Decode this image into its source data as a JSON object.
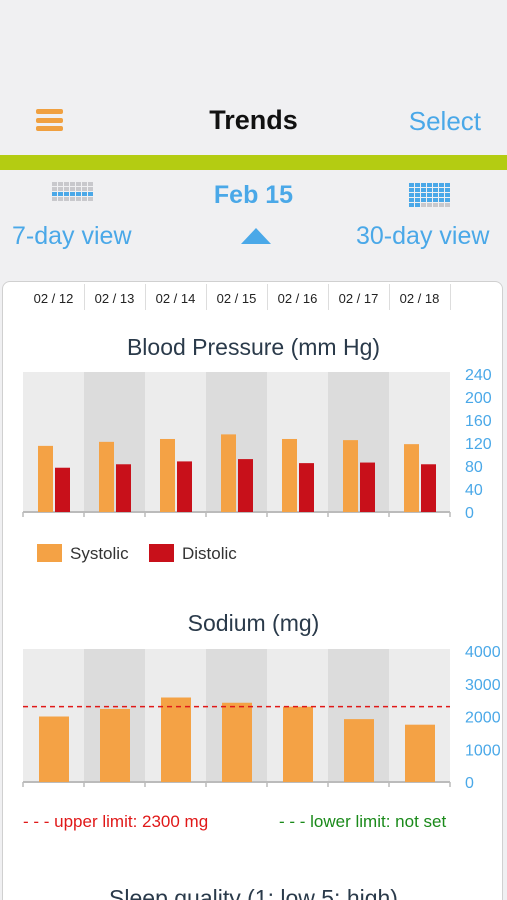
{
  "nav": {
    "title": "Trends",
    "select_label": "Select",
    "menu_icon": "hamburger-menu-icon"
  },
  "colors": {
    "accent": "#4aa8e8",
    "green_bar": "#b4cc12",
    "systolic": "#f4a245",
    "distolic": "#c8101a",
    "upper_limit": "#e01818",
    "lower_limit": "#1a8a1a",
    "menu": "#f0a040"
  },
  "view_bar": {
    "current_date": "Feb 15",
    "week_view_label": "7-day view",
    "month_view_label": "30-day view",
    "week_icon": "week-calendar-icon",
    "month_icon": "month-calendar-icon"
  },
  "dates": [
    "02 / 12",
    "02 / 13",
    "02 / 14",
    "02 / 15",
    "02 / 16",
    "02 / 17",
    "02 / 18"
  ],
  "blood_pressure": {
    "title": "Blood Pressure (mm Hg)",
    "legend": {
      "systolic": "Systolic",
      "distolic": "Distolic"
    }
  },
  "sodium": {
    "title": "Sodium (mg)",
    "upper_limit_label": "- - - upper limit: 2300 mg",
    "lower_limit_label": "- - - lower limit: not set"
  },
  "sleep": {
    "title": "Sleep quality (1: low 5: high)"
  },
  "chart_data": [
    {
      "type": "bar",
      "title": "Blood Pressure (mm Hg)",
      "categories": [
        "02 / 12",
        "02 / 13",
        "02 / 14",
        "02 / 15",
        "02 / 16",
        "02 / 17",
        "02 / 18"
      ],
      "series": [
        {
          "name": "Systolic",
          "values": [
            115,
            122,
            127,
            135,
            127,
            125,
            118
          ]
        },
        {
          "name": "Distolic",
          "values": [
            77,
            83,
            88,
            92,
            85,
            86,
            83
          ]
        }
      ],
      "ylim": [
        0,
        240
      ],
      "yticks": [
        0,
        40,
        80,
        120,
        160,
        200,
        240
      ],
      "grid": false,
      "legend": "bottom-left"
    },
    {
      "type": "bar",
      "title": "Sodium (mg)",
      "categories": [
        "02 / 12",
        "02 / 13",
        "02 / 14",
        "02 / 15",
        "02 / 16",
        "02 / 17",
        "02 / 18"
      ],
      "series": [
        {
          "values": [
            2000,
            2230,
            2580,
            2420,
            2300,
            1920,
            1750
          ]
        }
      ],
      "ylim": [
        0,
        4000
      ],
      "yticks": [
        0,
        1000,
        2000,
        3000,
        4000
      ],
      "upper_limit": 2300,
      "grid": false,
      "legend": "bottom"
    }
  ]
}
